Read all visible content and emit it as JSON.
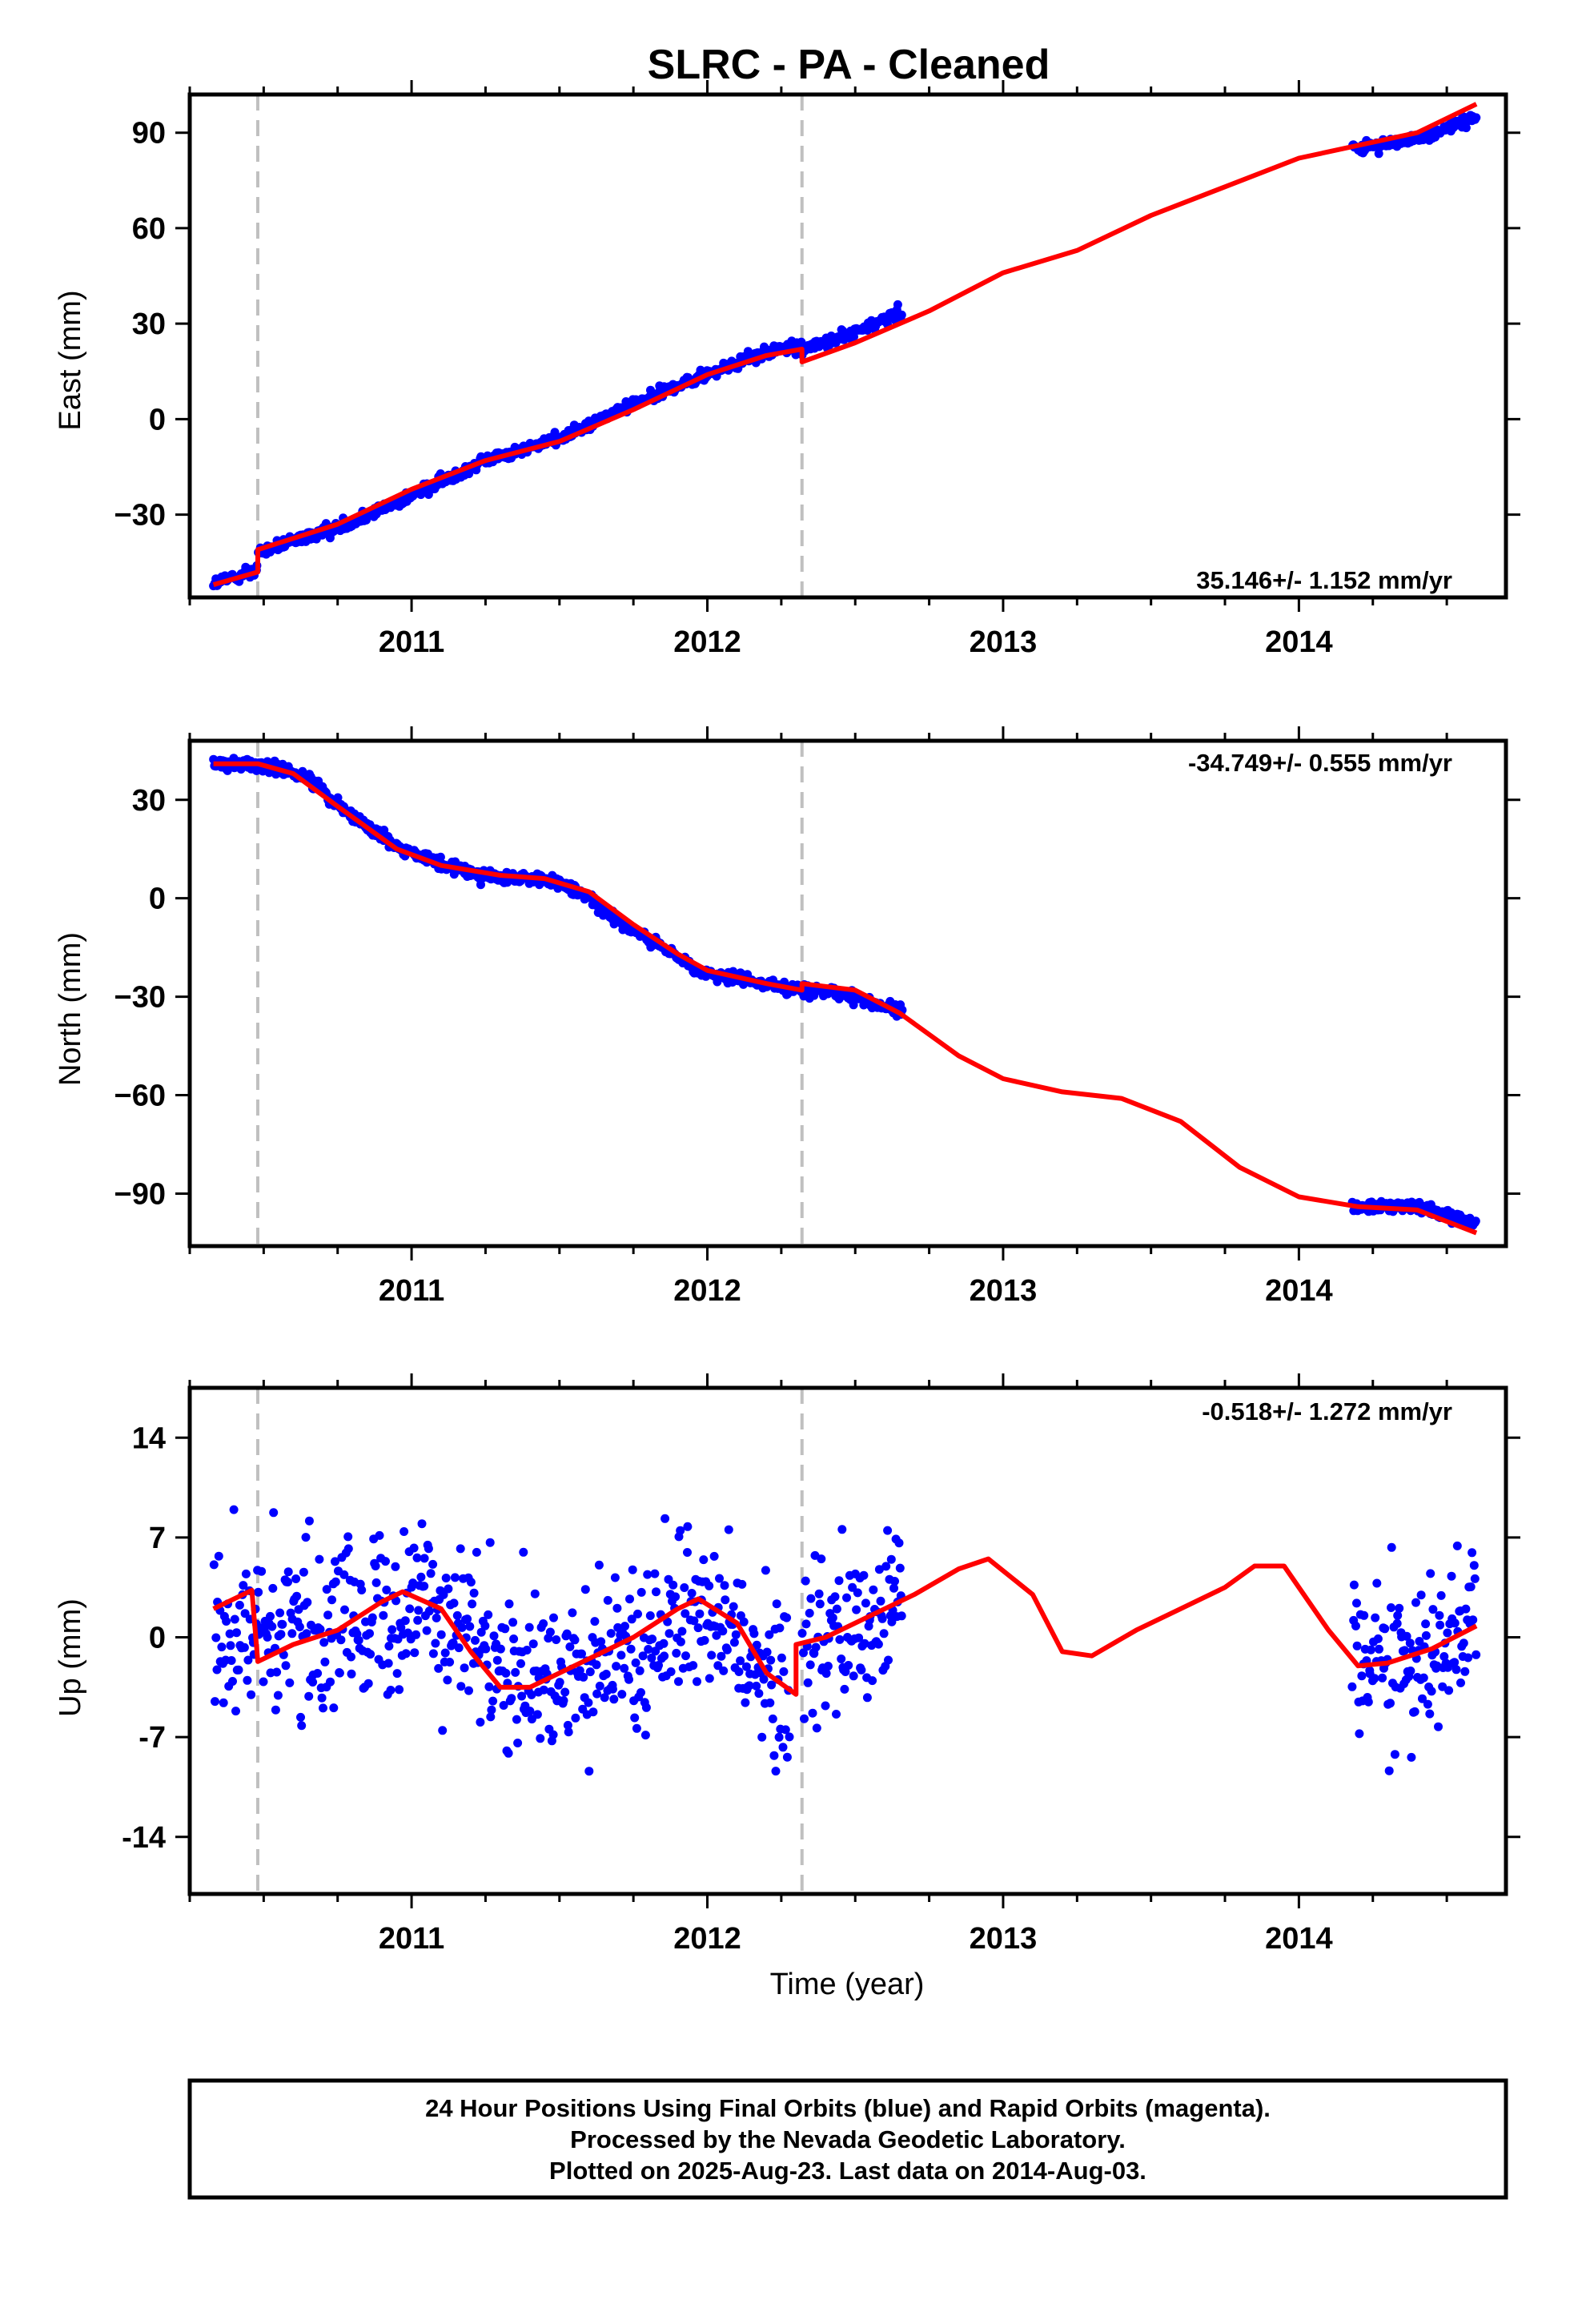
{
  "title": "SLRC  - PA - Cleaned",
  "xlabel": "Time (year)",
  "footer": {
    "lines": [
      "24 Hour Positions Using Final Orbits (blue) and Rapid Orbits (magenta).",
      "Processed by the Nevada Geodetic Laboratory.",
      "Plotted on 2025-Aug-23. Last data on 2014-Aug-03."
    ]
  },
  "colors": {
    "data": "#0000ff",
    "model": "#ff0000",
    "offset_line": "#c0c0c0"
  },
  "chart_data": [
    {
      "type": "scatter",
      "name": "east",
      "ylabel": "East (mm)",
      "rate_label": "35.146+/- 1.152 mm/yr",
      "xlim": [
        2010.25,
        2014.7
      ],
      "ylim": [
        -56,
        102
      ],
      "x_ticks": [
        2011,
        2012,
        2013,
        2014
      ],
      "y_ticks": [
        -30,
        0,
        30,
        60,
        90
      ],
      "y_tick_labels": [
        "−30",
        "0",
        "30",
        "60",
        "90"
      ],
      "offsets": [
        2010.48,
        2012.32
      ],
      "data_segments": [
        {
          "x": [
            2010.33,
            2010.48,
            2010.48,
            2010.75,
            2011.0,
            2011.25,
            2011.5,
            2011.75,
            2012.0,
            2012.2,
            2012.32
          ],
          "y": [
            -52,
            -47,
            -42,
            -34,
            -24,
            -13,
            -6,
            5,
            14,
            21,
            23
          ]
        },
        {
          "x": [
            2012.32,
            2012.5,
            2012.66
          ],
          "y": [
            22,
            27,
            34
          ]
        },
        {
          "x": [
            2014.18,
            2014.4,
            2014.6
          ],
          "y": [
            85,
            88,
            95
          ]
        }
      ],
      "model": {
        "x": [
          2010.33,
          2010.48,
          2010.48,
          2010.75,
          2011.0,
          2011.25,
          2011.5,
          2011.75,
          2012.0,
          2012.2,
          2012.32,
          2012.32,
          2012.5,
          2012.75,
          2013.0,
          2013.25,
          2013.5,
          2013.75,
          2014.0,
          2014.2,
          2014.4,
          2014.6
        ],
        "y": [
          -52,
          -48,
          -41,
          -33,
          -22,
          -13,
          -7,
          3,
          14,
          20,
          22,
          18,
          24,
          34,
          46,
          53,
          64,
          73,
          82,
          86,
          90,
          99
        ]
      }
    },
    {
      "type": "scatter",
      "name": "north",
      "ylabel": "North (mm)",
      "rate_label": "-34.749+/- 0.555 mm/yr",
      "xlim": [
        2010.25,
        2014.7
      ],
      "ylim": [
        -106,
        48
      ],
      "x_ticks": [
        2011,
        2012,
        2013,
        2014
      ],
      "y_ticks": [
        -90,
        -60,
        -30,
        0,
        30
      ],
      "y_tick_labels": [
        "−90",
        "−60",
        "−30",
        "0",
        "30"
      ],
      "offsets": [
        2010.48,
        2012.32
      ],
      "data_segments": [
        {
          "x": [
            2010.33,
            2010.48,
            2010.65,
            2010.8,
            2010.95,
            2011.1,
            2011.3,
            2011.45,
            2011.6,
            2011.75,
            2011.9,
            2012.0,
            2012.2,
            2012.32
          ],
          "y": [
            41,
            41,
            37,
            25,
            16,
            10,
            6,
            6,
            0,
            -10,
            -18,
            -23,
            -26,
            -28
          ]
        },
        {
          "x": [
            2012.32,
            2012.5,
            2012.66
          ],
          "y": [
            -28,
            -30,
            -35
          ]
        },
        {
          "x": [
            2014.18,
            2014.4,
            2014.6
          ],
          "y": [
            -94,
            -94,
            -99
          ]
        }
      ],
      "model": {
        "x": [
          2010.33,
          2010.48,
          2010.6,
          2010.75,
          2010.95,
          2011.1,
          2011.3,
          2011.45,
          2011.6,
          2011.75,
          2011.9,
          2012.0,
          2012.2,
          2012.32,
          2012.32,
          2012.5,
          2012.65,
          2012.85,
          2013.0,
          2013.2,
          2013.4,
          2013.6,
          2013.8,
          2014.0,
          2014.2,
          2014.4,
          2014.6
        ],
        "y": [
          41,
          41,
          38,
          28,
          15,
          10,
          7,
          6,
          2,
          -8,
          -17,
          -22,
          -26,
          -28,
          -26,
          -28,
          -35,
          -48,
          -55,
          -59,
          -61,
          -68,
          -82,
          -91,
          -94,
          -95,
          -102
        ]
      }
    },
    {
      "type": "scatter",
      "name": "up",
      "ylabel": "Up (mm)",
      "rate_label": "-0.518+/- 1.272 mm/yr",
      "xlim": [
        2010.25,
        2014.7
      ],
      "ylim": [
        -18,
        17.5
      ],
      "x_ticks": [
        2011,
        2012,
        2013,
        2014
      ],
      "y_ticks": [
        -14,
        -7,
        0,
        7,
        14
      ],
      "y_tick_labels": [
        "-14",
        "-7",
        "0",
        "7",
        "14"
      ],
      "offsets": [
        2010.48,
        2012.32
      ],
      "data_segments": [
        {
          "x": [
            2010.33,
            2010.6,
            2010.85,
            2011.0,
            2011.2,
            2011.35,
            2011.55,
            2011.8,
            2011.95,
            2012.1,
            2012.28
          ],
          "y": [
            2,
            0,
            2,
            3,
            0,
            -4,
            -3,
            0,
            3,
            0,
            -4
          ]
        },
        {
          "x": [
            2012.32,
            2012.5,
            2012.66
          ],
          "y": [
            0,
            1,
            2
          ]
        },
        {
          "x": [
            2014.18,
            2014.35,
            2014.6
          ],
          "y": [
            -1,
            -2,
            1
          ]
        }
      ],
      "model": {
        "x": [
          2010.33,
          2010.46,
          2010.48,
          2010.6,
          2010.75,
          2010.9,
          2010.97,
          2011.1,
          2011.2,
          2011.3,
          2011.4,
          2011.55,
          2011.75,
          2011.9,
          2011.97,
          2012.1,
          2012.2,
          2012.3,
          2012.3,
          2012.4,
          2012.55,
          2012.7,
          2012.85,
          2012.95,
          2013.1,
          2013.2,
          2013.3,
          2013.45,
          2013.6,
          2013.75,
          2013.85,
          2013.95,
          2014.1,
          2014.2,
          2014.3,
          2014.45,
          2014.6
        ],
        "y": [
          2,
          3.3,
          -1.7,
          -0.5,
          0.5,
          2.5,
          3.2,
          2,
          -1,
          -3.5,
          -3.5,
          -2,
          0,
          2,
          2.7,
          1,
          -2.5,
          -4,
          -0.5,
          0,
          1.5,
          3,
          4.8,
          5.5,
          3,
          -1,
          -1.3,
          0.5,
          2,
          3.5,
          5,
          5,
          0.5,
          -2,
          -1.8,
          -0.8,
          0.8
        ]
      }
    }
  ]
}
